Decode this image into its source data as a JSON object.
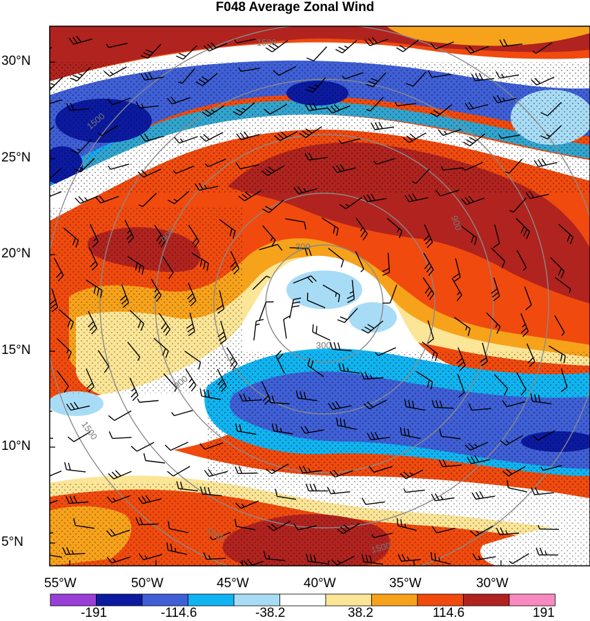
{
  "title": "F048 Average Zonal Wind",
  "lat_labels": [
    "30°N",
    "25°N",
    "20°N",
    "15°N",
    "10°N",
    "5°N"
  ],
  "lon_labels": [
    "55°W",
    "50°W",
    "45°W",
    "40°W",
    "35°W",
    "30°W"
  ],
  "range_rings": [
    "300",
    "300",
    "900",
    "900",
    "900",
    "1500",
    "1500",
    "1500",
    "1500",
    "1500"
  ],
  "colorbar": {
    "labels": [
      "-191",
      "-114.6",
      "-38.2",
      "38.2",
      "114.6",
      "191"
    ],
    "colors": [
      "#9a3fd6",
      "#0b1aa0",
      "#3f5fd6",
      "#10b4f0",
      "#a8dcf6",
      "#ffffff",
      "#fbe596",
      "#f7a21b",
      "#f04a0e",
      "#b0231f",
      "#f98ac0"
    ]
  },
  "palette": {
    "dark_red": "#b0231f",
    "red": "#f04a0e",
    "orange": "#f7a21b",
    "yellow": "#fbe596",
    "white": "#ffffff",
    "light_blue": "#a8dcf6",
    "cyan": "#10b4f0",
    "blue": "#3f5fd6",
    "navy": "#0b1aa0"
  }
}
